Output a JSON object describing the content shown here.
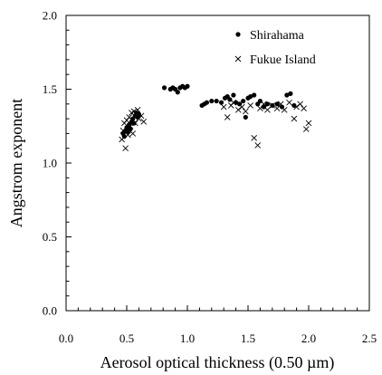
{
  "chart_data": {
    "type": "scatter",
    "title": "",
    "xlabel": "Aerosol optical thickness (0.50 µm)",
    "ylabel": "Angstrom exponent",
    "xlim": [
      0.0,
      2.5
    ],
    "ylim": [
      0.0,
      2.0
    ],
    "xticks": [
      "0.0",
      "0.5",
      "1.0",
      "1.5",
      "2.0",
      "2.5"
    ],
    "yticks": [
      "0.0",
      "0.5",
      "1.0",
      "1.5",
      "2.0"
    ],
    "grid": false,
    "legend_position": "top-right",
    "series": [
      {
        "name": "Shirahama",
        "marker": "dot",
        "color": "#000000",
        "points": [
          [
            0.47,
            1.2
          ],
          [
            0.48,
            1.18
          ],
          [
            0.49,
            1.22
          ],
          [
            0.5,
            1.24
          ],
          [
            0.51,
            1.21
          ],
          [
            0.52,
            1.26
          ],
          [
            0.53,
            1.23
          ],
          [
            0.54,
            1.28
          ],
          [
            0.55,
            1.3
          ],
          [
            0.56,
            1.27
          ],
          [
            0.57,
            1.32
          ],
          [
            0.58,
            1.34
          ],
          [
            0.59,
            1.31
          ],
          [
            0.6,
            1.33
          ],
          [
            0.81,
            1.51
          ],
          [
            0.86,
            1.5
          ],
          [
            0.88,
            1.51
          ],
          [
            0.9,
            1.5
          ],
          [
            0.92,
            1.48
          ],
          [
            0.94,
            1.51
          ],
          [
            0.96,
            1.52
          ],
          [
            0.98,
            1.51
          ],
          [
            1.0,
            1.52
          ],
          [
            1.12,
            1.39
          ],
          [
            1.14,
            1.4
          ],
          [
            1.16,
            1.41
          ],
          [
            1.2,
            1.42
          ],
          [
            1.24,
            1.42
          ],
          [
            1.28,
            1.41
          ],
          [
            1.31,
            1.44
          ],
          [
            1.33,
            1.45
          ],
          [
            1.35,
            1.43
          ],
          [
            1.38,
            1.46
          ],
          [
            1.4,
            1.41
          ],
          [
            1.43,
            1.4
          ],
          [
            1.46,
            1.42
          ],
          [
            1.48,
            1.31
          ],
          [
            1.5,
            1.44
          ],
          [
            1.52,
            1.45
          ],
          [
            1.55,
            1.46
          ],
          [
            1.58,
            1.4
          ],
          [
            1.6,
            1.42
          ],
          [
            1.63,
            1.38
          ],
          [
            1.66,
            1.4
          ],
          [
            1.7,
            1.39
          ],
          [
            1.74,
            1.4
          ],
          [
            1.78,
            1.38
          ],
          [
            1.82,
            1.46
          ],
          [
            1.85,
            1.47
          ],
          [
            1.88,
            1.39
          ]
        ]
      },
      {
        "name": "Fukue Island",
        "marker": "x",
        "color": "#000000",
        "points": [
          [
            0.46,
            1.16
          ],
          [
            0.47,
            1.22
          ],
          [
            0.48,
            1.27
          ],
          [
            0.49,
            1.1
          ],
          [
            0.5,
            1.29
          ],
          [
            0.51,
            1.19
          ],
          [
            0.52,
            1.31
          ],
          [
            0.53,
            1.25
          ],
          [
            0.54,
            1.34
          ],
          [
            0.55,
            1.2
          ],
          [
            0.56,
            1.35
          ],
          [
            0.57,
            1.27
          ],
          [
            0.58,
            1.33
          ],
          [
            0.59,
            1.36
          ],
          [
            0.6,
            1.3
          ],
          [
            0.62,
            1.32
          ],
          [
            0.64,
            1.28
          ],
          [
            1.3,
            1.38
          ],
          [
            1.33,
            1.31
          ],
          [
            1.36,
            1.39
          ],
          [
            1.38,
            1.41
          ],
          [
            1.42,
            1.36
          ],
          [
            1.45,
            1.38
          ],
          [
            1.48,
            1.35
          ],
          [
            1.52,
            1.39
          ],
          [
            1.55,
            1.17
          ],
          [
            1.58,
            1.12
          ],
          [
            1.6,
            1.37
          ],
          [
            1.63,
            1.4
          ],
          [
            1.66,
            1.36
          ],
          [
            1.7,
            1.39
          ],
          [
            1.74,
            1.37
          ],
          [
            1.77,
            1.4
          ],
          [
            1.8,
            1.36
          ],
          [
            1.84,
            1.41
          ],
          [
            1.88,
            1.3
          ],
          [
            1.9,
            1.38
          ],
          [
            1.93,
            1.4
          ],
          [
            1.96,
            1.37
          ],
          [
            1.98,
            1.23
          ],
          [
            2.0,
            1.27
          ]
        ]
      }
    ]
  }
}
